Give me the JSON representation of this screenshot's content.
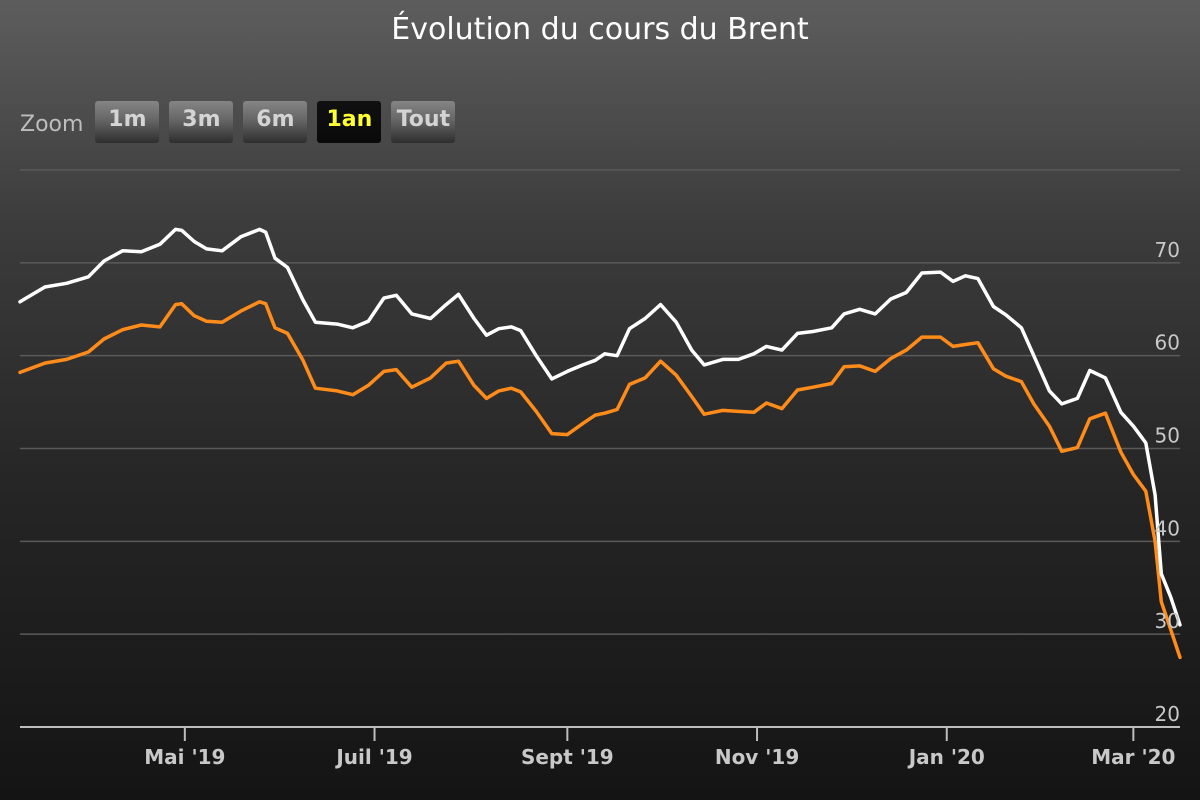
{
  "chart_data": {
    "type": "line",
    "title": "Évolution du cours du Brent",
    "ylim": [
      20,
      80
    ],
    "yticks": [
      20,
      30,
      40,
      50,
      60,
      70
    ],
    "grid": true,
    "xaxis": {
      "start": "2019-03-09",
      "end": "2020-03-16",
      "ticks": [
        {
          "date": "2019-05-01",
          "label": "Mai '19"
        },
        {
          "date": "2019-07-01",
          "label": "Juil '19"
        },
        {
          "date": "2019-09-01",
          "label": "Sept '19"
        },
        {
          "date": "2019-11-01",
          "label": "Nov '19"
        },
        {
          "date": "2020-01-01",
          "label": "Jan '20"
        },
        {
          "date": "2020-03-01",
          "label": "Mar '20"
        }
      ]
    },
    "series": [
      {
        "color": "#ffffff",
        "x": [
          "2019-03-09",
          "2019-03-17",
          "2019-03-24",
          "2019-03-31",
          "2019-04-05",
          "2019-04-11",
          "2019-04-17",
          "2019-04-23",
          "2019-04-28",
          "2019-04-30",
          "2019-05-04",
          "2019-05-08",
          "2019-05-13",
          "2019-05-19",
          "2019-05-25",
          "2019-05-27",
          "2019-05-30",
          "2019-06-03",
          "2019-06-08",
          "2019-06-12",
          "2019-06-19",
          "2019-06-24",
          "2019-06-29",
          "2019-07-04",
          "2019-07-08",
          "2019-07-13",
          "2019-07-19",
          "2019-07-24",
          "2019-07-28",
          "2019-08-02",
          "2019-08-06",
          "2019-08-10",
          "2019-08-14",
          "2019-08-17",
          "2019-08-22",
          "2019-08-27",
          "2019-09-01",
          "2019-09-06",
          "2019-09-10",
          "2019-09-13",
          "2019-09-17",
          "2019-09-21",
          "2019-09-26",
          "2019-10-01",
          "2019-10-06",
          "2019-10-11",
          "2019-10-15",
          "2019-10-21",
          "2019-10-26",
          "2019-10-31",
          "2019-11-04",
          "2019-11-09",
          "2019-11-14",
          "2019-11-19",
          "2019-11-25",
          "2019-11-29",
          "2019-12-04",
          "2019-12-09",
          "2019-12-14",
          "2019-12-19",
          "2019-12-24",
          "2019-12-30",
          "2020-01-03",
          "2020-01-07",
          "2020-01-11",
          "2020-01-16",
          "2020-01-20",
          "2020-01-25",
          "2020-01-29",
          "2020-02-03",
          "2020-02-07",
          "2020-02-12",
          "2020-02-16",
          "2020-02-21",
          "2020-02-26",
          "2020-03-01",
          "2020-03-05",
          "2020-03-08",
          "2020-03-10",
          "2020-03-13",
          "2020-03-16"
        ],
        "values": [
          65.8,
          67.4,
          67.8,
          68.5,
          70.2,
          71.3,
          71.2,
          72.0,
          73.6,
          73.5,
          72.3,
          71.5,
          71.3,
          72.8,
          73.6,
          73.3,
          70.5,
          69.5,
          66.0,
          63.6,
          63.4,
          63.0,
          63.7,
          66.2,
          66.5,
          64.5,
          64.0,
          65.5,
          66.6,
          64.0,
          62.2,
          62.9,
          63.1,
          62.7,
          60.0,
          57.5,
          58.3,
          59.0,
          59.5,
          60.2,
          60.0,
          62.9,
          64.0,
          65.5,
          63.6,
          60.6,
          59.0,
          59.6,
          59.6,
          60.2,
          61.0,
          60.6,
          62.4,
          62.6,
          63.0,
          64.5,
          65.0,
          64.5,
          66.1,
          66.8,
          68.9,
          69.0,
          68.0,
          68.6,
          68.3,
          65.3,
          64.4,
          63.0,
          60.0,
          56.2,
          54.8,
          55.4,
          58.4,
          57.6,
          53.9,
          52.4,
          50.6,
          45.0,
          36.5,
          34.0,
          31.0
        ]
      },
      {
        "color": "#ff8c1a",
        "x": [
          "2019-03-09",
          "2019-03-17",
          "2019-03-24",
          "2019-03-31",
          "2019-04-05",
          "2019-04-11",
          "2019-04-17",
          "2019-04-23",
          "2019-04-28",
          "2019-04-30",
          "2019-05-04",
          "2019-05-08",
          "2019-05-13",
          "2019-05-19",
          "2019-05-25",
          "2019-05-27",
          "2019-05-30",
          "2019-06-03",
          "2019-06-08",
          "2019-06-12",
          "2019-06-19",
          "2019-06-24",
          "2019-06-29",
          "2019-07-04",
          "2019-07-08",
          "2019-07-13",
          "2019-07-19",
          "2019-07-24",
          "2019-07-28",
          "2019-08-02",
          "2019-08-06",
          "2019-08-10",
          "2019-08-14",
          "2019-08-17",
          "2019-08-22",
          "2019-08-27",
          "2019-09-01",
          "2019-09-06",
          "2019-09-10",
          "2019-09-13",
          "2019-09-17",
          "2019-09-21",
          "2019-09-26",
          "2019-10-01",
          "2019-10-06",
          "2019-10-11",
          "2019-10-15",
          "2019-10-21",
          "2019-10-26",
          "2019-10-31",
          "2019-11-04",
          "2019-11-09",
          "2019-11-14",
          "2019-11-19",
          "2019-11-25",
          "2019-11-29",
          "2019-12-04",
          "2019-12-09",
          "2019-12-14",
          "2019-12-19",
          "2019-12-24",
          "2019-12-30",
          "2020-01-03",
          "2020-01-07",
          "2020-01-11",
          "2020-01-16",
          "2020-01-20",
          "2020-01-25",
          "2020-01-29",
          "2020-02-03",
          "2020-02-07",
          "2020-02-12",
          "2020-02-16",
          "2020-02-21",
          "2020-02-26",
          "2020-03-01",
          "2020-03-05",
          "2020-03-08",
          "2020-03-10",
          "2020-03-13",
          "2020-03-16"
        ],
        "values": [
          58.2,
          59.2,
          59.6,
          60.4,
          61.8,
          62.8,
          63.3,
          63.1,
          65.5,
          65.6,
          64.3,
          63.7,
          63.6,
          64.8,
          65.8,
          65.6,
          63.0,
          62.4,
          59.5,
          56.5,
          56.2,
          55.8,
          56.8,
          58.3,
          58.5,
          56.6,
          57.6,
          59.2,
          59.4,
          56.8,
          55.4,
          56.2,
          56.5,
          56.1,
          54.0,
          51.6,
          51.5,
          52.7,
          53.6,
          53.8,
          54.2,
          56.9,
          57.6,
          59.4,
          57.9,
          55.6,
          53.7,
          54.1,
          54.0,
          53.9,
          54.9,
          54.3,
          56.3,
          56.6,
          57.0,
          58.8,
          58.9,
          58.3,
          59.7,
          60.6,
          62.0,
          62.0,
          61.0,
          61.2,
          61.4,
          58.6,
          57.8,
          57.2,
          54.8,
          52.4,
          49.7,
          50.1,
          53.2,
          53.8,
          49.6,
          47.2,
          45.4,
          40.0,
          33.5,
          30.5,
          27.5
        ]
      }
    ]
  },
  "zoom": {
    "label": "Zoom",
    "buttons": [
      {
        "label": "1m",
        "active": false
      },
      {
        "label": "3m",
        "active": false
      },
      {
        "label": "6m",
        "active": false
      },
      {
        "label": "1an",
        "active": true
      },
      {
        "label": "Tout",
        "active": false
      }
    ]
  }
}
